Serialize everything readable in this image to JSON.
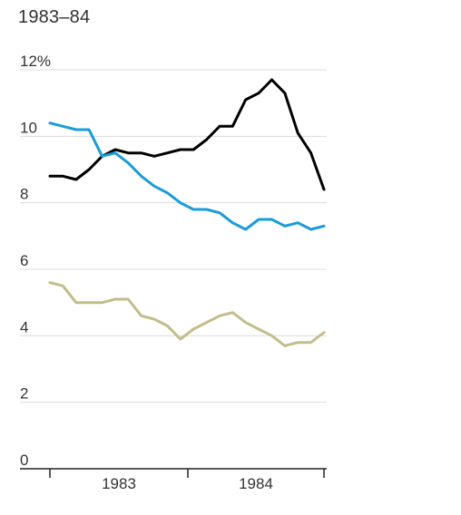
{
  "title": "1983–84",
  "chart_data": {
    "type": "line",
    "title": "1983–84",
    "x_labels": [
      "1983",
      "1984"
    ],
    "x_points_per_year": 12,
    "y_tick_labels": [
      "12%",
      "10",
      "8",
      "6",
      "4",
      "2",
      "0"
    ],
    "y_ticks": [
      12,
      10,
      8,
      6,
      4,
      2,
      0
    ],
    "ylim": [
      0,
      12
    ],
    "grid": true,
    "series": [
      {
        "color": "#000000",
        "values": [
          8.8,
          8.8,
          8.7,
          9.0,
          9.4,
          9.6,
          9.5,
          9.5,
          9.4,
          9.5,
          9.6,
          9.6,
          9.9,
          10.3,
          10.3,
          11.1,
          11.3,
          11.7,
          11.3,
          10.1,
          9.5,
          8.4
        ]
      },
      {
        "color": "#199cd8",
        "values": [
          10.4,
          10.3,
          10.2,
          10.2,
          9.4,
          9.5,
          9.2,
          8.8,
          8.5,
          8.3,
          8.0,
          7.8,
          7.8,
          7.7,
          7.4,
          7.2,
          7.5,
          7.5,
          7.3,
          7.4,
          7.2,
          7.3
        ]
      },
      {
        "color": "#c2bd8a",
        "values": [
          5.6,
          5.5,
          5.0,
          5.0,
          5.0,
          5.1,
          5.1,
          4.6,
          4.5,
          4.3,
          3.9,
          4.2,
          4.4,
          4.6,
          4.7,
          4.4,
          4.2,
          4.0,
          3.7,
          3.8,
          3.8,
          4.1
        ]
      }
    ]
  }
}
